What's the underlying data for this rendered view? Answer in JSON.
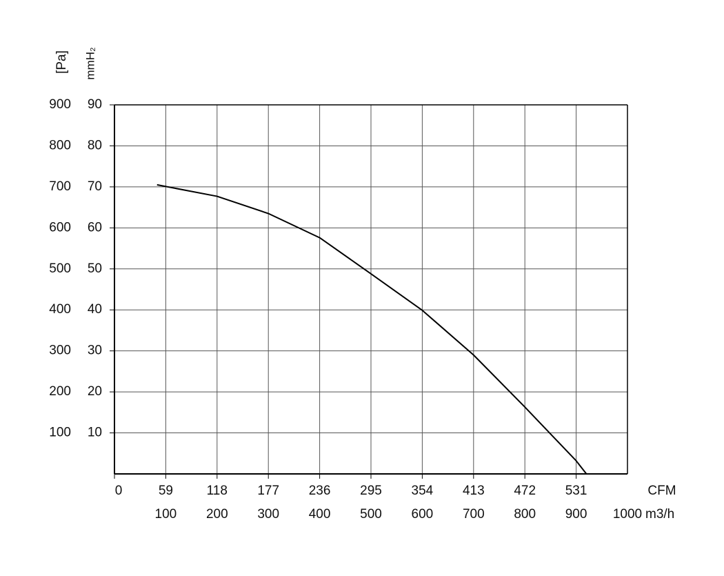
{
  "chart_data": {
    "type": "line",
    "y_label": "[Pa]",
    "y2_label": "mmH₂",
    "x_label": "m3/h",
    "x2_label": "CFM",
    "x": [
      83,
      200,
      300,
      400,
      500,
      600,
      700,
      800,
      900,
      920
    ],
    "series": [
      {
        "color": "#000000",
        "values": [
          705,
          677,
          635,
          576,
          488,
          399,
          290,
          163,
          32,
          0
        ]
      }
    ],
    "xlim": [
      0,
      1000
    ],
    "ylim": [
      0,
      900
    ],
    "xticks": [
      100,
      200,
      300,
      400,
      500,
      600,
      700,
      800,
      900,
      1000
    ],
    "x2ticks": [
      {
        "value": 0,
        "label": "0"
      },
      {
        "value": 100,
        "label": "59"
      },
      {
        "value": 200,
        "label": "118"
      },
      {
        "value": 300,
        "label": "177"
      },
      {
        "value": 400,
        "label": "236"
      },
      {
        "value": 500,
        "label": "295"
      },
      {
        "value": 600,
        "label": "354"
      },
      {
        "value": 700,
        "label": "413"
      },
      {
        "value": 800,
        "label": "472"
      },
      {
        "value": 900,
        "label": "531"
      }
    ],
    "yticks": [
      100,
      200,
      300,
      400,
      500,
      600,
      700,
      800,
      900
    ],
    "y2ticks": [
      {
        "value": 100,
        "label": "10"
      },
      {
        "value": 200,
        "label": "20"
      },
      {
        "value": 300,
        "label": "30"
      },
      {
        "value": 400,
        "label": "40"
      },
      {
        "value": 500,
        "label": "50"
      },
      {
        "value": 600,
        "label": "60"
      },
      {
        "value": 700,
        "label": "70"
      },
      {
        "value": 800,
        "label": "80"
      },
      {
        "value": 900,
        "label": "90"
      }
    ],
    "grid": true
  }
}
